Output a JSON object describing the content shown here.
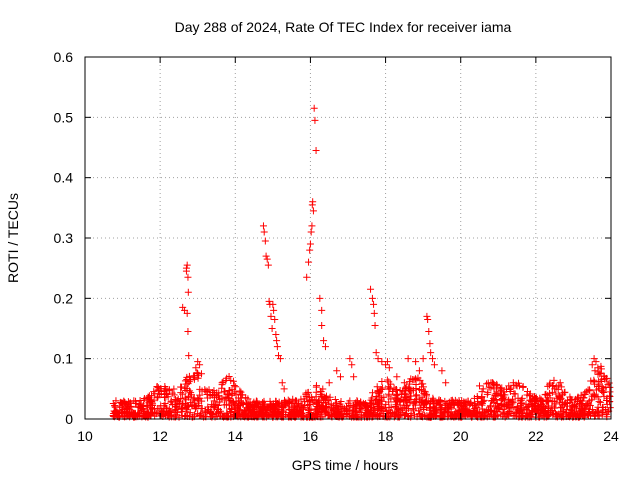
{
  "chart_data": {
    "type": "scatter",
    "title": "Day 288 of 2024, Rate Of TEC Index for receiver iama",
    "xlabel": "GPS time / hours",
    "ylabel": "ROTI / TECUs",
    "xlim": [
      10,
      24
    ],
    "ylim": [
      0,
      0.6
    ],
    "xticks": [
      10,
      12,
      14,
      16,
      18,
      20,
      22,
      24
    ],
    "yticks": [
      0,
      0.1,
      0.2,
      0.3,
      0.4,
      0.5,
      0.6
    ],
    "xtick_labels": [
      "10",
      "12",
      "14",
      "16",
      "18",
      "20",
      "22",
      "24"
    ],
    "ytick_labels": [
      "0",
      "0.1",
      "0.2",
      "0.3",
      "0.4",
      "0.5",
      "0.6"
    ],
    "grid": true,
    "marker": "+",
    "color": "#ff0000",
    "series": [
      {
        "x": [
          12.6,
          12.65,
          12.7,
          12.7,
          12.72,
          12.74,
          12.75,
          12.72,
          12.74,
          12.76,
          12.95,
          13.0,
          13.05,
          13.1,
          14.75,
          14.77,
          14.8,
          14.82,
          14.85,
          14.88,
          14.9,
          14.92,
          14.95,
          14.98,
          15.0,
          15.02,
          15.05,
          15.08,
          15.1,
          15.12,
          15.15,
          15.2,
          15.25,
          15.3,
          15.9,
          15.95,
          15.98,
          16.0,
          16.02,
          16.04,
          16.05,
          16.06,
          16.08,
          16.1,
          16.12,
          16.15,
          16.25,
          16.3,
          16.3,
          16.35,
          16.4,
          16.5,
          16.7,
          16.8,
          17.05,
          17.1,
          17.15,
          17.6,
          17.65,
          17.68,
          17.7,
          17.72,
          17.75,
          17.8,
          17.9,
          18.0,
          18.05,
          18.1,
          18.3,
          18.5,
          18.6,
          18.8,
          18.9,
          19.0,
          19.1,
          19.12,
          19.15,
          19.18,
          19.2,
          19.25,
          19.3,
          19.5,
          19.6,
          20.5,
          20.6,
          21.4,
          21.5,
          22.45,
          22.5,
          23.5,
          23.55,
          23.6,
          23.65,
          23.7,
          23.75,
          23.8
        ],
        "y": [
          0.185,
          0.18,
          0.25,
          0.245,
          0.255,
          0.235,
          0.21,
          0.175,
          0.145,
          0.105,
          0.085,
          0.095,
          0.09,
          0.075,
          0.32,
          0.31,
          0.295,
          0.27,
          0.265,
          0.255,
          0.195,
          0.19,
          0.17,
          0.15,
          0.19,
          0.18,
          0.165,
          0.14,
          0.13,
          0.12,
          0.105,
          0.1,
          0.06,
          0.05,
          0.235,
          0.26,
          0.28,
          0.29,
          0.31,
          0.32,
          0.355,
          0.36,
          0.345,
          0.515,
          0.495,
          0.445,
          0.2,
          0.18,
          0.155,
          0.13,
          0.12,
          0.06,
          0.08,
          0.07,
          0.1,
          0.09,
          0.07,
          0.215,
          0.2,
          0.19,
          0.175,
          0.155,
          0.11,
          0.1,
          0.095,
          0.09,
          0.095,
          0.085,
          0.07,
          0.06,
          0.1,
          0.095,
          0.08,
          0.1,
          0.17,
          0.165,
          0.145,
          0.125,
          0.11,
          0.1,
          0.09,
          0.08,
          0.06,
          0.055,
          0.05,
          0.06,
          0.055,
          0.055,
          0.05,
          0.09,
          0.1,
          0.095,
          0.085,
          0.075,
          0.065,
          0.05
        ]
      }
    ]
  }
}
